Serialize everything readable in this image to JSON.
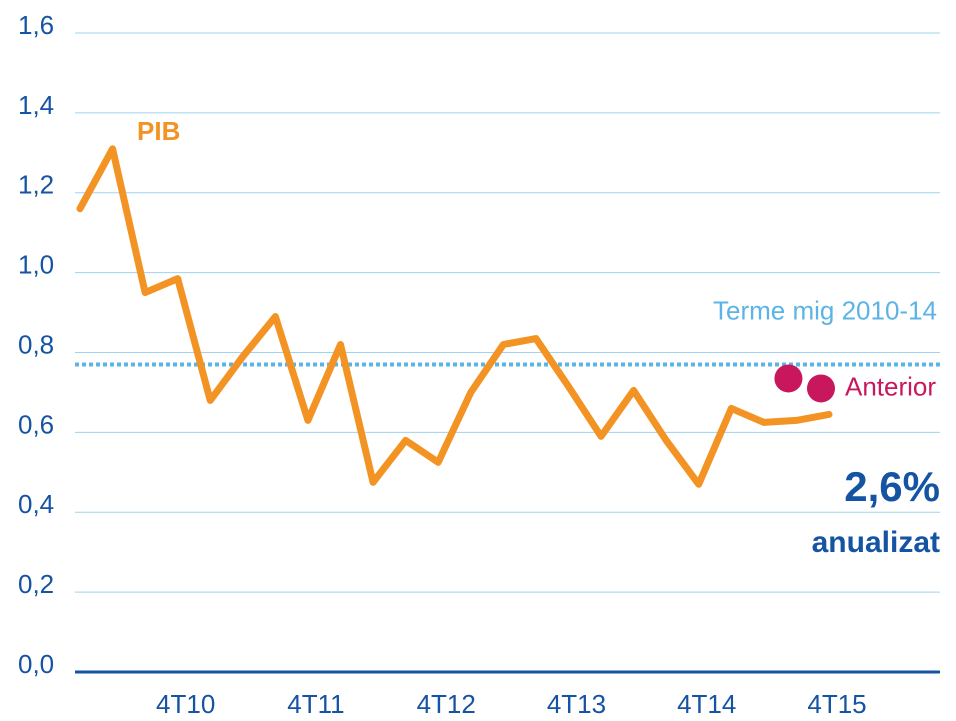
{
  "chart_data": {
    "type": "line",
    "categories": [
      null,
      null,
      null,
      "4T10",
      null,
      null,
      null,
      "4T11",
      null,
      null,
      null,
      "4T12",
      null,
      null,
      null,
      "4T13",
      null,
      null,
      null,
      "4T14",
      null,
      null,
      null,
      "4T15"
    ],
    "series": [
      {
        "name": "PIB",
        "color": "#f39323",
        "values": [
          1.16,
          1.31,
          0.95,
          0.985,
          0.68,
          0.79,
          0.89,
          0.63,
          0.82,
          0.475,
          0.58,
          0.525,
          0.7,
          0.82,
          0.835,
          0.715,
          0.59,
          0.705,
          0.58,
          0.47,
          0.66,
          0.625,
          0.63,
          0.645
        ]
      },
      {
        "name": "Anterior",
        "color": "#c8175d",
        "values": [
          null,
          null,
          null,
          null,
          null,
          null,
          null,
          null,
          null,
          null,
          null,
          null,
          null,
          null,
          null,
          null,
          null,
          null,
          null,
          null,
          null,
          null,
          0.735,
          0.71
        ]
      }
    ],
    "reference_line": {
      "label": "Terme mig 2010-14",
      "value": 0.77,
      "color": "#5bb4e5"
    },
    "annotations": [
      {
        "text": "2,6%"
      },
      {
        "text": "anualizat"
      }
    ],
    "ylim": [
      0,
      1.6
    ],
    "yticks": [
      {
        "value": 0,
        "label": "0,0"
      },
      {
        "value": 0.2,
        "label": "0,2"
      },
      {
        "value": 0.4,
        "label": "0,4"
      },
      {
        "value": 0.6,
        "label": "0,6"
      },
      {
        "value": 0.8,
        "label": "0,8"
      },
      {
        "value": 1.0,
        "label": "1,0"
      },
      {
        "value": 1.2,
        "label": "1,2"
      },
      {
        "value": 1.4,
        "label": "1,4"
      },
      {
        "value": 1.6,
        "label": "1,6"
      }
    ],
    "grid": true
  }
}
